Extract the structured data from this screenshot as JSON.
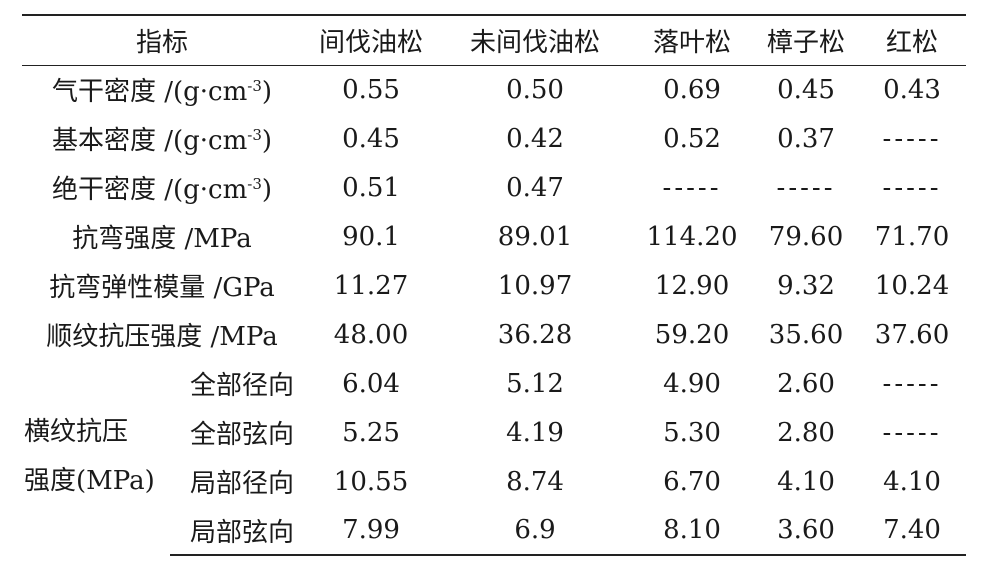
{
  "table": {
    "headers": [
      "指标",
      "间伐油松",
      "未间伐油松",
      "落叶松",
      "樟子松",
      "红松"
    ],
    "rows": [
      {
        "label": "气干密度 /(g·cm",
        "sup": "-3",
        "suffix": ")",
        "values": [
          "0.55",
          "0.50",
          "0.69",
          "0.45",
          "0.43"
        ]
      },
      {
        "label": "基本密度 /(g·cm",
        "sup": "-3",
        "suffix": ")",
        "values": [
          "0.45",
          "0.42",
          "0.52",
          "0.37",
          "-----"
        ]
      },
      {
        "label": "绝干密度 /(g·cm",
        "sup": "-3",
        "suffix": ")",
        "values": [
          "0.51",
          "0.47",
          "-----",
          "-----",
          "-----"
        ]
      },
      {
        "label": "抗弯强度 /MPa",
        "values": [
          "90.1",
          "89.01",
          "114.20",
          "79.60",
          "71.70"
        ]
      },
      {
        "label": "抗弯弹性模量 /GPa",
        "values": [
          "11.27",
          "10.97",
          "12.90",
          "9.32",
          "10.24"
        ]
      },
      {
        "label": "顺纹抗压强度 /MPa",
        "values": [
          "48.00",
          "36.28",
          "59.20",
          "35.60",
          "37.60"
        ]
      }
    ],
    "group": {
      "label_line1": "横纹抗压",
      "label_line2": "强度(MPa)",
      "rows": [
        {
          "label": "全部径向",
          "values": [
            "6.04",
            "5.12",
            "4.90",
            "2.60",
            "-----"
          ]
        },
        {
          "label": "全部弦向",
          "values": [
            "5.25",
            "4.19",
            "5.30",
            "2.80",
            "-----"
          ]
        },
        {
          "label": "局部径向",
          "values": [
            "10.55",
            "8.74",
            "6.70",
            "4.10",
            "4.10"
          ]
        },
        {
          "label": "局部弦向",
          "values": [
            "7.99",
            "6.9",
            "8.10",
            "3.60",
            "7.40"
          ]
        }
      ]
    }
  }
}
